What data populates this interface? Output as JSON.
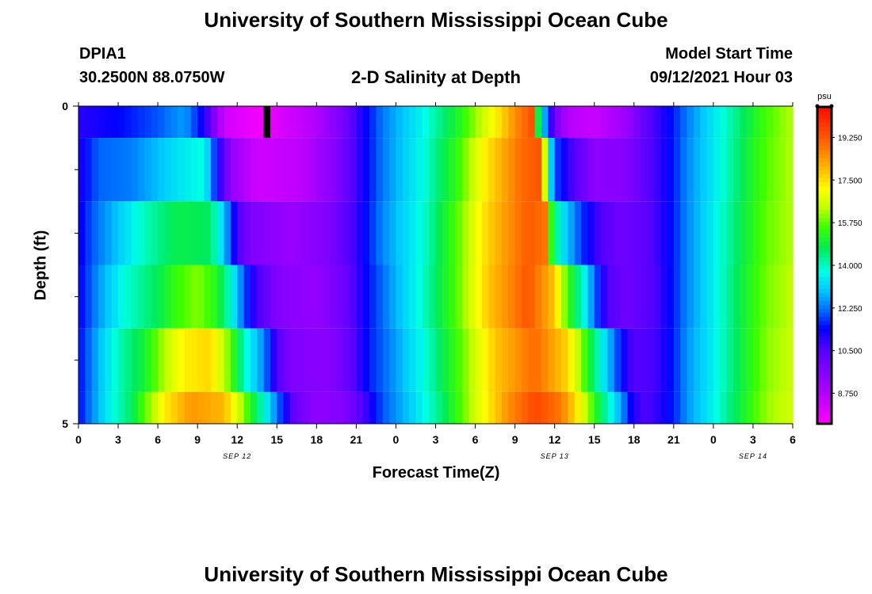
{
  "page": {
    "title_top": "University of Southern Mississippi Ocean Cube",
    "title_bottom": "University of Southern Mississippi Ocean Cube",
    "station_id": "DPIA1",
    "station_coords": "30.2500N  88.0750W",
    "plot_title": "2-D Salinity at Depth",
    "model_start_label": "Model Start Time",
    "model_start_value": "09/12/2021 Hour 03"
  },
  "colors": {
    "background": "#ffffff",
    "missing_data": "#000000"
  },
  "chart_data": {
    "type": "heatmap",
    "title": "2-D Salinity at Depth",
    "xlabel": "Forecast Time(Z)",
    "ylabel": "Depth (ft)",
    "x_hours_range": [
      0,
      54
    ],
    "y_range": [
      0,
      5
    ],
    "y_tick_labels": [
      "0",
      "5"
    ],
    "y_minor_ticks": [
      1,
      2,
      3,
      4
    ],
    "x_tick_labels": [
      "0",
      "3",
      "6",
      "9",
      "12",
      "15",
      "18",
      "21",
      "0",
      "3",
      "6",
      "9",
      "12",
      "15",
      "18",
      "21",
      "0",
      "3",
      "6"
    ],
    "date_labels": [
      {
        "text": "SEP 12",
        "hour": 12
      },
      {
        "text": "SEP 13",
        "hour": 36
      },
      {
        "text": "SEP 14",
        "hour": 51
      }
    ],
    "colorbar": {
      "unit": "psu",
      "min": 7.5,
      "max": 20.5,
      "ticks": [
        "19.250",
        "17.500",
        "15.750",
        "14.000",
        "12.250",
        "10.500",
        "8.750"
      ],
      "tick_values": [
        19.25,
        17.5,
        15.75,
        14.0,
        12.25,
        10.5,
        8.75
      ]
    },
    "missing_cells": [
      {
        "layer": 0,
        "hour_start": 14,
        "hour_end": 14.5
      }
    ],
    "layers": [
      {
        "depth_range": [
          0,
          0.5
        ],
        "keypoints": [
          [
            0,
            11.0
          ],
          [
            3,
            11.4
          ],
          [
            6,
            12.0
          ],
          [
            8,
            12.6
          ],
          [
            9.5,
            11.2
          ],
          [
            11,
            8.3
          ],
          [
            13.5,
            7.7
          ],
          [
            15,
            8.0
          ],
          [
            18,
            8.8
          ],
          [
            20,
            9.8
          ],
          [
            21,
            10.8
          ],
          [
            23,
            12.3
          ],
          [
            26,
            13.6
          ],
          [
            28.5,
            15.0
          ],
          [
            31,
            16.8
          ],
          [
            33,
            18.5
          ],
          [
            34.5,
            19.5
          ],
          [
            34.6,
            15.5
          ],
          [
            35.4,
            12.0
          ],
          [
            36,
            10.0
          ],
          [
            37,
            8.7
          ],
          [
            39,
            8.4
          ],
          [
            41.5,
            9.2
          ],
          [
            43,
            10.4
          ],
          [
            45,
            11.6
          ],
          [
            46,
            12.3
          ],
          [
            48,
            13.4
          ],
          [
            50,
            14.5
          ],
          [
            52,
            15.6
          ],
          [
            54,
            16.3
          ]
        ]
      },
      {
        "depth_range": [
          0.5,
          1.5
        ],
        "keypoints": [
          [
            0,
            11.1
          ],
          [
            1.5,
            12.1
          ],
          [
            4,
            12.3
          ],
          [
            7,
            13.2
          ],
          [
            9.5,
            13.8
          ],
          [
            10.3,
            11.8
          ],
          [
            11.5,
            9.3
          ],
          [
            13.5,
            8.3
          ],
          [
            17,
            8.6
          ],
          [
            19.5,
            9.6
          ],
          [
            21,
            10.8
          ],
          [
            23,
            12.3
          ],
          [
            26,
            13.7
          ],
          [
            28.5,
            15.3
          ],
          [
            31,
            17.5
          ],
          [
            33.5,
            19.0
          ],
          [
            35,
            19.3
          ],
          [
            35.5,
            14.0
          ],
          [
            36,
            12.0
          ],
          [
            37.5,
            10.5
          ],
          [
            39,
            9.4
          ],
          [
            41.5,
            9.6
          ],
          [
            43,
            10.4
          ],
          [
            45,
            11.6
          ],
          [
            46,
            12.4
          ],
          [
            48,
            13.4
          ],
          [
            50,
            14.6
          ],
          [
            52,
            15.7
          ],
          [
            54,
            16.3
          ]
        ]
      },
      {
        "depth_range": [
          1.5,
          2.5
        ],
        "keypoints": [
          [
            0,
            11.2
          ],
          [
            1,
            12.0
          ],
          [
            3,
            13.0
          ],
          [
            5,
            14.0
          ],
          [
            7.5,
            14.8
          ],
          [
            10,
            14.6
          ],
          [
            11,
            13.0
          ],
          [
            12,
            10.7
          ],
          [
            13,
            9.7
          ],
          [
            16,
            9.2
          ],
          [
            19,
            9.7
          ],
          [
            21,
            10.9
          ],
          [
            23,
            12.4
          ],
          [
            26,
            13.8
          ],
          [
            28.5,
            15.6
          ],
          [
            31,
            17.7
          ],
          [
            34,
            19.2
          ],
          [
            35.4,
            18.8
          ],
          [
            35.5,
            16.0
          ],
          [
            36.5,
            13.5
          ],
          [
            38,
            11.8
          ],
          [
            39.5,
            10.6
          ],
          [
            41,
            10.0
          ],
          [
            43,
            10.4
          ],
          [
            45,
            11.6
          ],
          [
            46,
            12.4
          ],
          [
            48,
            13.5
          ],
          [
            50,
            14.7
          ],
          [
            52,
            15.8
          ],
          [
            54,
            16.3
          ]
        ]
      },
      {
        "depth_range": [
          2.5,
          3.5
        ],
        "keypoints": [
          [
            0,
            11.3
          ],
          [
            1.5,
            12.5
          ],
          [
            3.5,
            13.8
          ],
          [
            6,
            14.7
          ],
          [
            7.5,
            15.5
          ],
          [
            9,
            16.0
          ],
          [
            10.5,
            15.2
          ],
          [
            11.5,
            13.8
          ],
          [
            12.5,
            12.0
          ],
          [
            13.5,
            10.7
          ],
          [
            15,
            9.6
          ],
          [
            18,
            9.3
          ],
          [
            20,
            10.0
          ],
          [
            21.5,
            11.2
          ],
          [
            23.5,
            12.5
          ],
          [
            26,
            13.9
          ],
          [
            28.5,
            15.6
          ],
          [
            31,
            17.8
          ],
          [
            34,
            19.3
          ],
          [
            36,
            17.8
          ],
          [
            37,
            15.5
          ],
          [
            38,
            14.0
          ],
          [
            39,
            12.2
          ],
          [
            40,
            10.6
          ],
          [
            41.5,
            10.0
          ],
          [
            43.5,
            10.6
          ],
          [
            45,
            11.6
          ],
          [
            46,
            12.4
          ],
          [
            48,
            13.5
          ],
          [
            50,
            14.8
          ],
          [
            52,
            15.9
          ],
          [
            54,
            16.4
          ]
        ]
      },
      {
        "depth_range": [
          3.5,
          4.5
        ],
        "keypoints": [
          [
            0,
            11.4
          ],
          [
            1.5,
            12.8
          ],
          [
            3,
            14.0
          ],
          [
            5,
            15.0
          ],
          [
            6.5,
            16.3
          ],
          [
            8,
            17.3
          ],
          [
            10,
            17.6
          ],
          [
            11.3,
            16.0
          ],
          [
            12.5,
            14.0
          ],
          [
            14,
            12.4
          ],
          [
            15,
            10.6
          ],
          [
            16,
            9.7
          ],
          [
            19,
            9.5
          ],
          [
            20.5,
            10.3
          ],
          [
            22,
            11.6
          ],
          [
            24,
            12.6
          ],
          [
            26.5,
            14.0
          ],
          [
            29,
            15.8
          ],
          [
            31.5,
            17.8
          ],
          [
            34.5,
            19.0
          ],
          [
            37,
            17.6
          ],
          [
            38,
            16.0
          ],
          [
            39,
            14.5
          ],
          [
            40,
            13.0
          ],
          [
            41,
            11.5
          ],
          [
            42,
            10.5
          ],
          [
            43.5,
            10.7
          ],
          [
            45,
            11.6
          ],
          [
            46,
            12.5
          ],
          [
            48,
            13.5
          ],
          [
            50,
            14.8
          ],
          [
            52,
            16.0
          ],
          [
            54,
            16.5
          ]
        ]
      },
      {
        "depth_range": [
          4.5,
          5
        ],
        "keypoints": [
          [
            0,
            11.4
          ],
          [
            1,
            12.4
          ],
          [
            2.5,
            13.7
          ],
          [
            4,
            14.6
          ],
          [
            5,
            15.7
          ],
          [
            6.5,
            17.3
          ],
          [
            8.5,
            18.4
          ],
          [
            11,
            18.0
          ],
          [
            12.5,
            16.0
          ],
          [
            13.5,
            14.6
          ],
          [
            14.5,
            13.0
          ],
          [
            15.5,
            11.5
          ],
          [
            16.5,
            10.0
          ],
          [
            18,
            9.4
          ],
          [
            20,
            9.6
          ],
          [
            21.5,
            10.6
          ],
          [
            23,
            12.0
          ],
          [
            25,
            13.0
          ],
          [
            27.5,
            14.5
          ],
          [
            30,
            16.6
          ],
          [
            32.5,
            18.5
          ],
          [
            34.5,
            19.5
          ],
          [
            36.5,
            18.8
          ],
          [
            38,
            17.0
          ],
          [
            39,
            15.4
          ],
          [
            40,
            14.0
          ],
          [
            41,
            12.6
          ],
          [
            42,
            11.0
          ],
          [
            43,
            10.6
          ],
          [
            45,
            11.6
          ],
          [
            46,
            12.5
          ],
          [
            48,
            13.6
          ],
          [
            50,
            14.9
          ],
          [
            52,
            16.1
          ],
          [
            54,
            16.6
          ]
        ]
      }
    ]
  }
}
